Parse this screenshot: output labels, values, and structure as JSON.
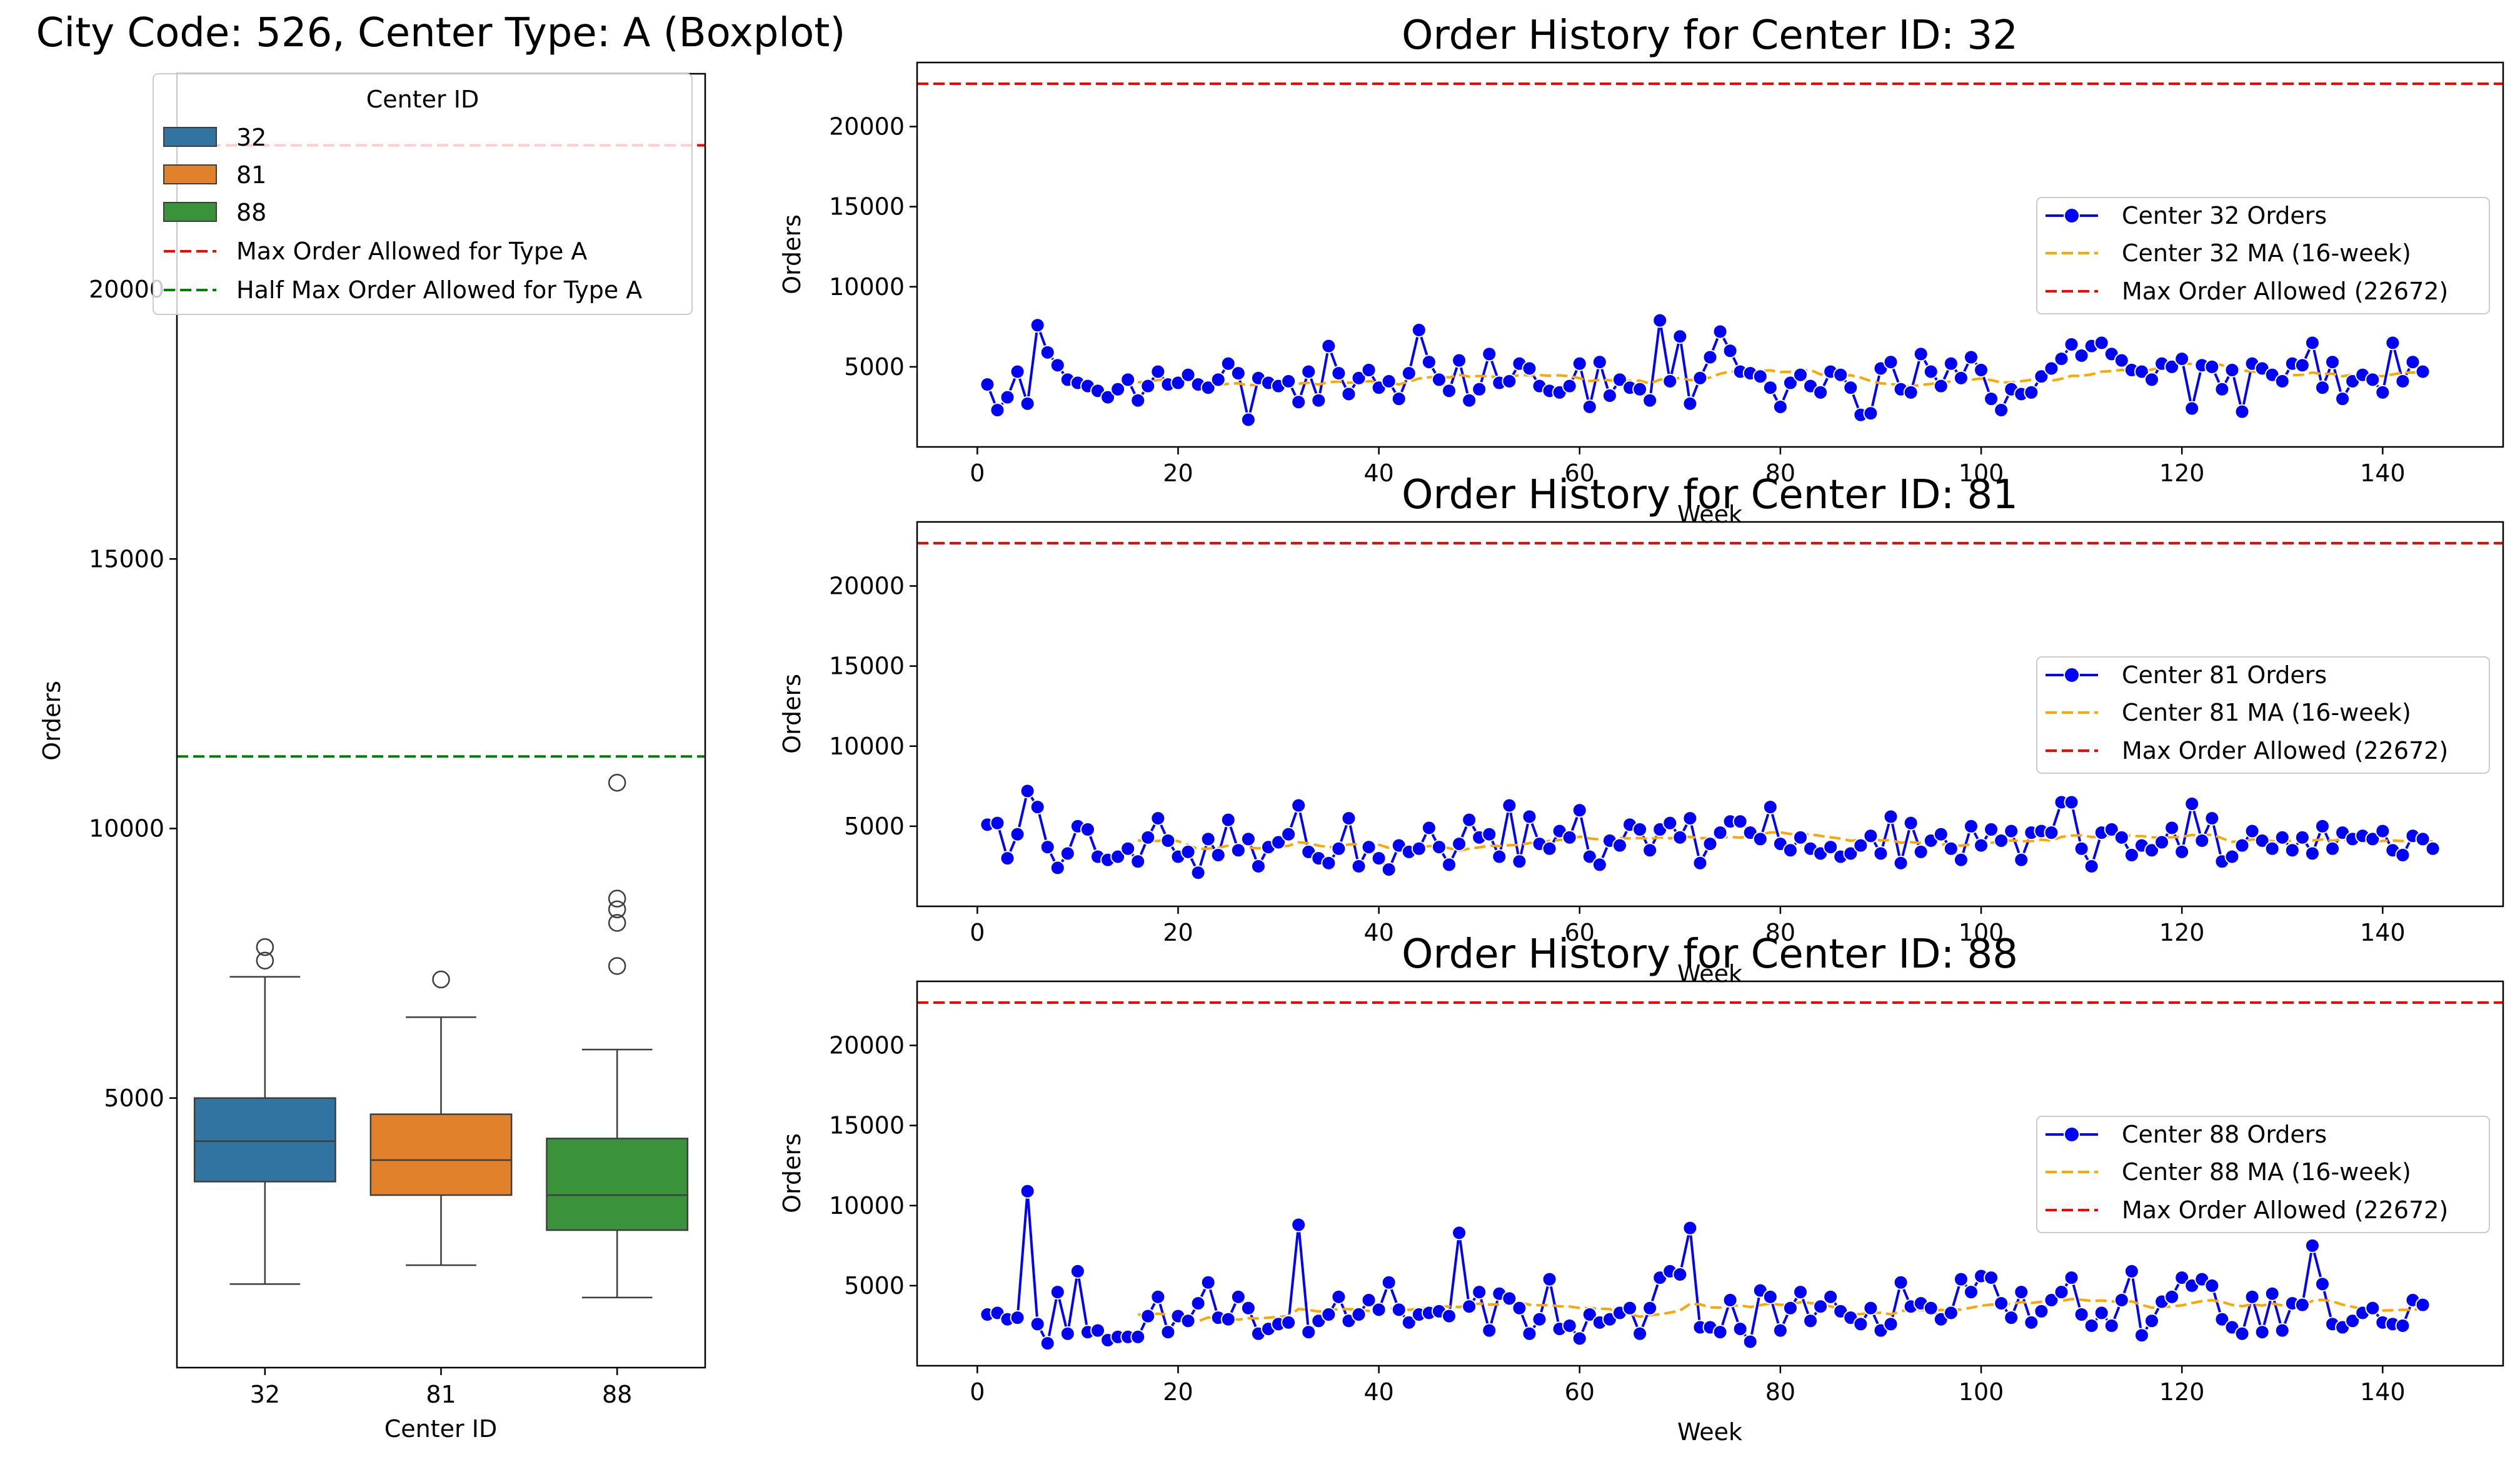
{
  "chart_data": [
    {
      "type": "boxplot",
      "title": "City Code: 526, Center Type: A (Boxplot)",
      "xlabel": "Center ID",
      "ylabel": "Orders",
      "ylim": [
        0,
        24000
      ],
      "yticks": [
        5000,
        10000,
        15000,
        20000
      ],
      "categories": [
        "32",
        "81",
        "88"
      ],
      "colors": [
        "#3274a1",
        "#e1812c",
        "#3a923a"
      ],
      "boxes": [
        {
          "whisker_low": 1550,
          "q1": 3450,
          "median": 4200,
          "q3": 5000,
          "whisker_high": 7250,
          "outliers": [
            7550,
            7800
          ]
        },
        {
          "whisker_low": 1900,
          "q1": 3200,
          "median": 3850,
          "q3": 4700,
          "whisker_high": 6500,
          "outliers": [
            7200
          ]
        },
        {
          "whisker_low": 1300,
          "q1": 2550,
          "median": 3200,
          "q3": 4250,
          "whisker_high": 5900,
          "outliers": [
            7450,
            8250,
            8500,
            8700,
            10850
          ]
        }
      ],
      "hlines": [
        {
          "value": 22672,
          "color": "#ff0000",
          "label": "Max Order Allowed for Type A"
        },
        {
          "value": 11336,
          "color": "#008000",
          "label": "Half Max Order Allowed for Type A"
        }
      ],
      "legend": {
        "title": "Center ID",
        "position": "upper-left",
        "entries": [
          "32",
          "81",
          "88",
          "Max Order Allowed for Type A",
          "Half Max Order Allowed for Type A"
        ]
      }
    },
    {
      "type": "line",
      "title": "Order History for Center ID: 32",
      "xlabel": "Week",
      "ylabel": "Orders",
      "xlim": [
        -6,
        152
      ],
      "ylim": [
        0,
        24000
      ],
      "xticks": [
        0,
        20,
        40,
        60,
        80,
        100,
        120,
        140
      ],
      "yticks": [
        5000,
        10000,
        15000,
        20000
      ],
      "ma_window": 16,
      "max_line": 22672,
      "x_start": 1,
      "series": [
        {
          "name": "Center 32 Orders",
          "color": "#0000ff",
          "values": [
            3900,
            2300,
            3100,
            4700,
            2700,
            7600,
            5900,
            5100,
            4200,
            4000,
            3800,
            3500,
            3100,
            3600,
            4200,
            2900,
            3800,
            4700,
            3900,
            4000,
            4500,
            3900,
            3700,
            4200,
            5200,
            4600,
            1700,
            4300,
            4000,
            3800,
            4100,
            2800,
            4700,
            2900,
            6300,
            4600,
            3300,
            4300,
            4800,
            3700,
            4100,
            3000,
            4600,
            7300,
            5300,
            4200,
            3500,
            5400,
            2900,
            3600,
            5800,
            4000,
            4100,
            5200,
            4900,
            3800,
            3500,
            3400,
            3800,
            5200,
            2500,
            5300,
            3200,
            4200,
            3700,
            3600,
            2900,
            7900,
            4100,
            6900,
            2700,
            4300,
            5600,
            7200,
            6000,
            4700,
            4600,
            4400,
            3700,
            2500,
            4000,
            4500,
            3800,
            3400,
            4700,
            4500,
            3700,
            2000,
            2100,
            4900,
            5300,
            3600,
            3400,
            5800,
            4700,
            3800,
            5200,
            4300,
            5600,
            4800,
            3000,
            2300,
            3600,
            3300,
            3400,
            4400,
            4900,
            5500,
            6400,
            5700,
            6300,
            6500,
            5800,
            5400,
            4800,
            4700,
            4200,
            5200,
            5000,
            5500,
            2400,
            5100,
            5000,
            3600,
            4800,
            2200,
            5200,
            4900,
            4500,
            4100,
            5200,
            5100,
            6500,
            3700,
            5300,
            3000,
            4100,
            4500,
            4200,
            3400,
            6500,
            4100,
            5300,
            4700
          ]
        },
        {
          "name": "Center 32 MA (16-week)",
          "color": "#ffa500",
          "dashed": true
        },
        {
          "name": "Max Order Allowed (22672)",
          "color": "#ff0000",
          "dashed": true
        }
      ],
      "legend_position": "center-right"
    },
    {
      "type": "line",
      "title": "Order History for Center ID: 81",
      "xlabel": "Week",
      "ylabel": "Orders",
      "xlim": [
        -6,
        152
      ],
      "ylim": [
        0,
        24000
      ],
      "xticks": [
        0,
        20,
        40,
        60,
        80,
        100,
        120,
        140
      ],
      "yticks": [
        5000,
        10000,
        15000,
        20000
      ],
      "ma_window": 16,
      "max_line": 22672,
      "x_start": 1,
      "series": [
        {
          "name": "Center 81 Orders",
          "color": "#0000ff",
          "values": [
            5100,
            5200,
            3000,
            4500,
            7200,
            6200,
            3700,
            2400,
            3300,
            5000,
            4800,
            3100,
            2900,
            3100,
            3600,
            2800,
            4300,
            5500,
            4100,
            3100,
            3400,
            2100,
            4200,
            3200,
            5400,
            3500,
            4200,
            2500,
            3700,
            4000,
            4500,
            6300,
            3400,
            3000,
            2700,
            3600,
            5500,
            2500,
            3700,
            3000,
            2300,
            3800,
            3400,
            3600,
            4900,
            3700,
            2600,
            3900,
            5400,
            4300,
            4500,
            3100,
            6300,
            2800,
            5600,
            3900,
            3600,
            4700,
            4300,
            6000,
            3100,
            2600,
            4100,
            3800,
            5100,
            4800,
            3500,
            4800,
            5200,
            4300,
            5500,
            2700,
            3900,
            4600,
            5300,
            5300,
            4600,
            4200,
            6200,
            3900,
            3500,
            4300,
            3600,
            3300,
            3700,
            3100,
            3300,
            3800,
            4400,
            3300,
            5600,
            2700,
            5200,
            3400,
            4100,
            4500,
            3600,
            2900,
            5000,
            3800,
            4800,
            4100,
            4700,
            2900,
            4600,
            4700,
            4600,
            6500,
            6500,
            3600,
            2500,
            4600,
            4800,
            4300,
            3200,
            3800,
            3500,
            4000,
            4900,
            3400,
            6400,
            4100,
            5500,
            2800,
            3100,
            3800,
            4700,
            4100,
            3600,
            4300,
            3500,
            4300,
            3300,
            5000,
            3600,
            4600,
            4200,
            4400,
            4200,
            4700,
            3500,
            3200,
            4400,
            4200,
            3600
          ]
        },
        {
          "name": "Center 81 MA (16-week)",
          "color": "#ffa500",
          "dashed": true
        },
        {
          "name": "Max Order Allowed (22672)",
          "color": "#ff0000",
          "dashed": true
        }
      ],
      "legend_position": "center-right"
    },
    {
      "type": "line",
      "title": "Order History for Center ID: 88",
      "xlabel": "Week",
      "ylabel": "Orders",
      "xlim": [
        -6,
        152
      ],
      "ylim": [
        0,
        24000
      ],
      "xticks": [
        0,
        20,
        40,
        60,
        80,
        100,
        120,
        140
      ],
      "yticks": [
        5000,
        10000,
        15000,
        20000
      ],
      "ma_window": 16,
      "max_line": 22672,
      "x_start": 1,
      "series": [
        {
          "name": "Center 88 Orders",
          "color": "#0000ff",
          "values": [
            3200,
            3300,
            2900,
            3000,
            10900,
            2600,
            1400,
            4600,
            2000,
            5900,
            2100,
            2200,
            1600,
            1800,
            1800,
            1800,
            3100,
            4300,
            2100,
            3100,
            2800,
            3900,
            5200,
            3000,
            2900,
            4300,
            3600,
            2000,
            2300,
            2600,
            2700,
            8800,
            2100,
            2800,
            3200,
            4300,
            2800,
            3200,
            4100,
            3500,
            5200,
            3500,
            2700,
            3200,
            3300,
            3400,
            3100,
            8300,
            3700,
            4600,
            2200,
            4500,
            4200,
            3600,
            2000,
            2900,
            5400,
            2300,
            2500,
            1700,
            3200,
            2700,
            2900,
            3300,
            3600,
            2000,
            3600,
            5500,
            5900,
            5700,
            8600,
            2400,
            2400,
            2100,
            4100,
            2300,
            1500,
            4700,
            4300,
            2200,
            3600,
            4600,
            2800,
            3700,
            4300,
            3400,
            3000,
            2600,
            3600,
            2200,
            2600,
            5200,
            3700,
            3900,
            3600,
            2900,
            3300,
            5400,
            4600,
            5600,
            5500,
            3900,
            3000,
            4600,
            2700,
            3400,
            4100,
            4600,
            5500,
            3200,
            2500,
            3300,
            2500,
            4100,
            5900,
            1900,
            2800,
            4000,
            4300,
            5500,
            5000,
            5400,
            5000,
            2900,
            2400,
            2000,
            4300,
            2100,
            4500,
            2200,
            3900,
            3800,
            7500,
            5100,
            2600,
            2400,
            2800,
            3300,
            3600,
            2700,
            2600,
            2500,
            4100,
            3800
          ]
        },
        {
          "name": "Center 88 MA (16-week)",
          "color": "#ffa500",
          "dashed": true
        },
        {
          "name": "Max Order Allowed (22672)",
          "color": "#ff0000",
          "dashed": true
        }
      ],
      "legend_position": "center-right"
    }
  ]
}
